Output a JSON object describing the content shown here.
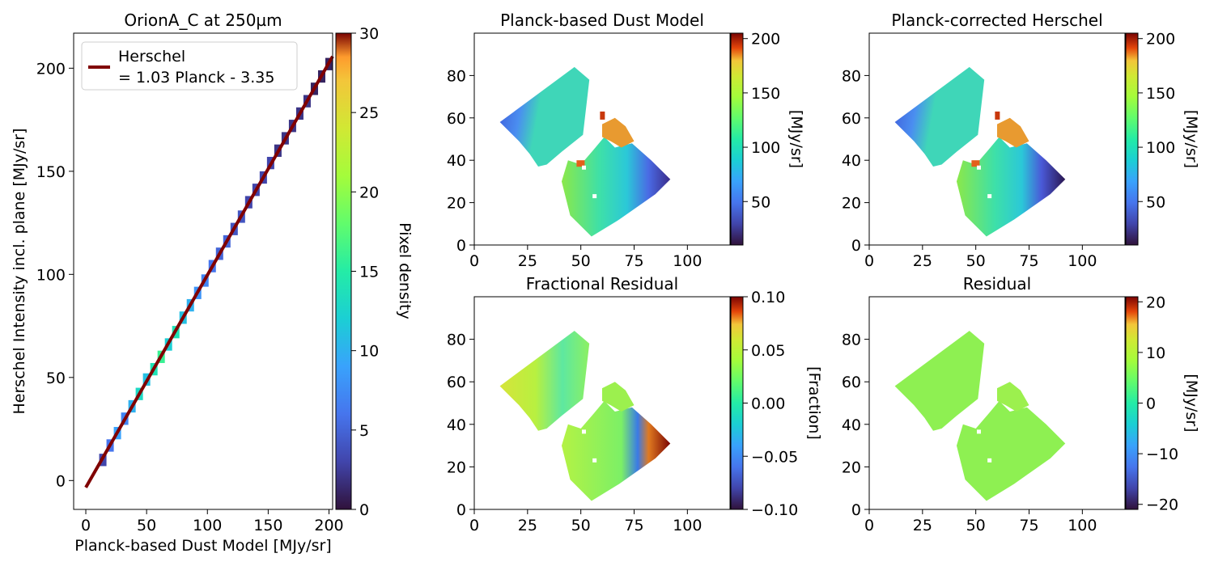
{
  "chart_data": [
    {
      "type": "heatmap",
      "title": "OrionA_C at 250µm",
      "xlabel": "Planck-based Dust Model [MJy/sr]",
      "ylabel": "Herschel Intensity incl. plane [MJy/sr]",
      "xlim": [
        -10,
        203
      ],
      "ylim": [
        -14,
        217
      ],
      "xticks": [
        0,
        50,
        100,
        150,
        200
      ],
      "yticks": [
        0,
        50,
        100,
        150,
        200
      ],
      "colorbar": {
        "label": "Pixel density",
        "range": [
          0,
          30
        ],
        "ticks": [
          0,
          5,
          10,
          15,
          20,
          25,
          30
        ]
      },
      "fit_line": {
        "slope": 1.03,
        "intercept": -3.35,
        "x_range": [
          0,
          203
        ]
      },
      "legend": {
        "position": "top-left",
        "entries": [
          "Herschel\n= 1.03 Planck - 3.35"
        ]
      },
      "density_band": [
        [
          14,
          10,
          3
        ],
        [
          20,
          17,
          6
        ],
        [
          26,
          23,
          9
        ],
        [
          32,
          30,
          7
        ],
        [
          38,
          36,
          10
        ],
        [
          44,
          42,
          13
        ],
        [
          50,
          49,
          11
        ],
        [
          56,
          54,
          14
        ],
        [
          62,
          60,
          16
        ],
        [
          68,
          66,
          12
        ],
        [
          74,
          72,
          14
        ],
        [
          80,
          79,
          11
        ],
        [
          86,
          85,
          10
        ],
        [
          92,
          91,
          8
        ],
        [
          98,
          97,
          7
        ],
        [
          104,
          104,
          6
        ],
        [
          110,
          110,
          5
        ],
        [
          116,
          116,
          5
        ],
        [
          122,
          122,
          4
        ],
        [
          128,
          128,
          4
        ],
        [
          134,
          135,
          3
        ],
        [
          140,
          141,
          3
        ],
        [
          146,
          147,
          3
        ],
        [
          152,
          154,
          3
        ],
        [
          158,
          160,
          2
        ],
        [
          164,
          166,
          2
        ],
        [
          170,
          172,
          2
        ],
        [
          176,
          178,
          2
        ],
        [
          182,
          184,
          2
        ],
        [
          188,
          190,
          1
        ],
        [
          194,
          196,
          1
        ],
        [
          200,
          202,
          1
        ]
      ]
    },
    {
      "type": "heatmap",
      "title": "Planck-based Dust Model",
      "xlim": [
        0,
        120
      ],
      "ylim": [
        0,
        100
      ],
      "xticks": [
        0,
        25,
        50,
        75,
        100
      ],
      "yticks": [
        0,
        20,
        40,
        60,
        80
      ],
      "colorbar": {
        "label": "[MJy/sr]",
        "range": [
          10,
          205
        ],
        "ticks": [
          50,
          100,
          150,
          200
        ]
      }
    },
    {
      "type": "heatmap",
      "title": "Planck-corrected Herschel",
      "xlim": [
        0,
        120
      ],
      "ylim": [
        0,
        100
      ],
      "xticks": [
        0,
        25,
        50,
        75,
        100
      ],
      "yticks": [
        0,
        20,
        40,
        60,
        80
      ],
      "colorbar": {
        "label": "[MJy/sr]",
        "range": [
          10,
          205
        ],
        "ticks": [
          50,
          100,
          150,
          200
        ]
      }
    },
    {
      "type": "heatmap",
      "title": "Fractional Residual",
      "xlim": [
        0,
        120
      ],
      "ylim": [
        0,
        100
      ],
      "xticks": [
        0,
        25,
        50,
        75,
        100
      ],
      "yticks": [
        0,
        20,
        40,
        60,
        80
      ],
      "colorbar": {
        "label": "[Fraction]",
        "range": [
          -0.1,
          0.1
        ],
        "ticks": [
          "0.10",
          "0.05",
          "0.00",
          "−0.05",
          "−0.10"
        ]
      }
    },
    {
      "type": "heatmap",
      "title": "Residual",
      "xlim": [
        0,
        120
      ],
      "ylim": [
        0,
        100
      ],
      "xticks": [
        0,
        25,
        50,
        75,
        100
      ],
      "yticks": [
        0,
        20,
        40,
        60,
        80
      ],
      "colorbar": {
        "label": "[MJy/sr]",
        "range": [
          -21,
          21
        ],
        "ticks": [
          "20",
          "10",
          "0",
          "−10",
          "−20"
        ]
      }
    }
  ],
  "colors": {
    "fit_line": "#800000"
  }
}
